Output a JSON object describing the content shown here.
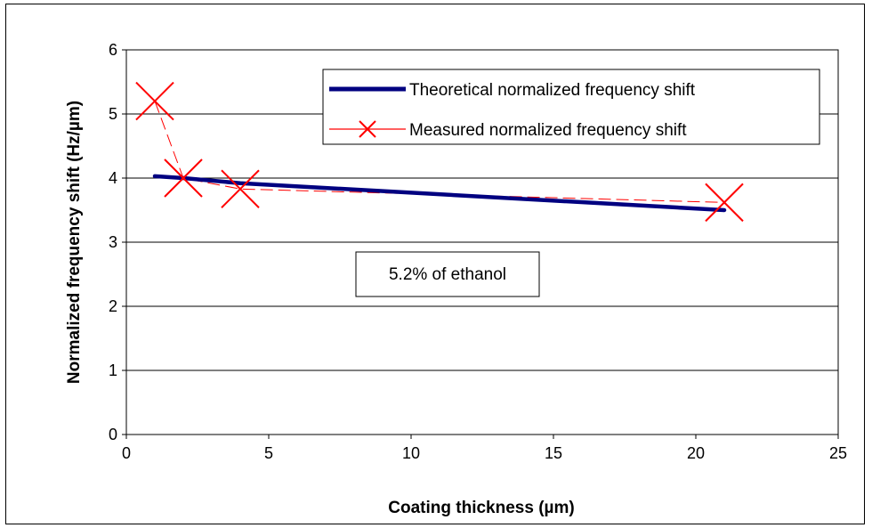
{
  "chart_data": {
    "type": "line",
    "xlabel": "Coating thickness (µm)",
    "ylabel": "Normalized frequency shift (Hz/µm)",
    "xlim": [
      0,
      25
    ],
    "ylim": [
      0,
      6
    ],
    "xticks": [
      0,
      5,
      10,
      15,
      20,
      25
    ],
    "yticks": [
      0,
      1,
      2,
      3,
      4,
      5,
      6
    ],
    "grid": "horizontal",
    "legend_position": "top-right",
    "annotation": "5.2% of ethanol",
    "series": [
      {
        "name": "Theoretical normalized frequency shift",
        "color": "#000080",
        "style": "solid-thick",
        "x": [
          1,
          2,
          4,
          21
        ],
        "y": [
          4.03,
          4.0,
          3.92,
          3.5
        ]
      },
      {
        "name": "Measured normalized frequency shift",
        "color": "#ff0000",
        "style": "dashed-x-markers",
        "x": [
          1,
          2,
          4,
          21
        ],
        "y": [
          5.2,
          4.0,
          3.83,
          3.62
        ]
      }
    ]
  }
}
